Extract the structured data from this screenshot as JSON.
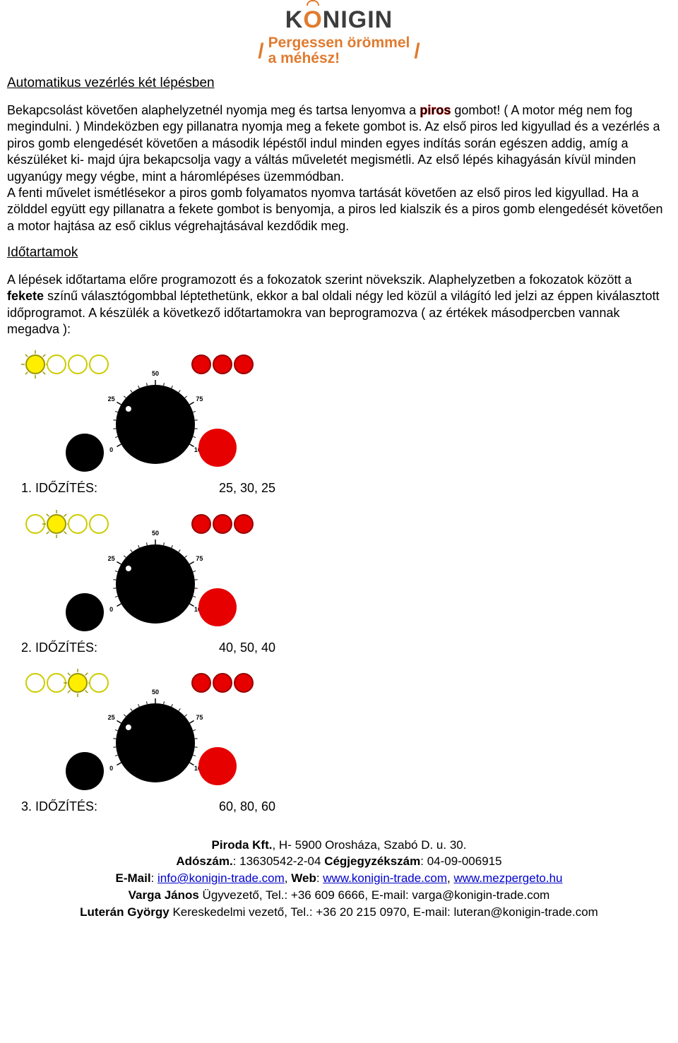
{
  "logo": {
    "brand_pre": "K",
    "brand_o": "O",
    "brand_post": "NIGIN",
    "brand_color_pre": "#3d3d3d",
    "brand_color_o": "#e07b2f",
    "brand_color_post": "#3d3d3d",
    "tagline1": "Pergessen örömmel",
    "tagline2": "a méhész!",
    "tagline_color": "#e07b2f",
    "slash_color": "#e07b2f"
  },
  "section1": {
    "title": "Automatikus vezérlés két lépésben",
    "p1_a": "Bekapcsolást követően alaphelyzetnél nyomja meg és tartsa lenyomva a ",
    "p1_red": "piros",
    "p1_b": " gombot! ( A motor még nem fog megindulni. ) Mindeközben egy pillanatra nyomja meg a fekete gombot is. Az első piros led kigyullad és a vezérlés a piros gomb elengedését követően a második lépéstől indul minden egyes indítás során egészen addig, amíg a készüléket ki- majd újra bekapcsolja vagy a váltás műveletét megismétli. Az első lépés kihagyásán kívül minden ugyanúgy megy végbe, mint a háromlépéses üzemmódban.",
    "p1_c": "A fenti művelet ismétlésekor a piros gomb folyamatos nyomva tartását követően az első piros led kigyullad. Ha a zölddel együtt egy pillanatra a fekete gombot is benyomja, a piros led kialszik és a piros gomb elengedését követően a motor hajtása az eső ciklus végrehajtásával kezdődik meg."
  },
  "section2": {
    "title": "Időtartamok",
    "p1_a": "A lépések időtartama előre programozott és a fokozatok szerint növekszik. Alaphelyzetben a fokozatok között a ",
    "p1_bold": "fekete",
    "p1_b": " színű választógombbal léptethetünk, ekkor a bal oldali négy led közül a világító led jelzi az éppen kiválasztott időprogramot. A készülék a következő időtartamokra van beprogramozva ( az értékek másodpercben vannak megadva ):"
  },
  "diagram_common": {
    "led_yellow_off_fill": "#ffffff",
    "led_yellow_off_stroke": "#cccc00",
    "led_yellow_on_fill": "#ffee00",
    "led_yellow_on_stroke": "#999900",
    "led_red_fill": "#e60000",
    "led_red_stroke": "#990000",
    "black_fill": "#000000",
    "dial_ticks": [
      "0",
      "25",
      "50",
      "75",
      "100"
    ],
    "tick_font": 9,
    "dial_r": 56,
    "button_r": 27,
    "red_button_r": 27,
    "led_r": 13
  },
  "timings": [
    {
      "label": "1. IDŐZÍTÉS:",
      "values": "25, 30, 25",
      "active_led": 0
    },
    {
      "label": "2. IDŐZÍTÉS:",
      "values": "40, 50, 40",
      "active_led": 1
    },
    {
      "label": "3. IDŐZÍTÉS:",
      "values": "60, 80, 60",
      "active_led": 2
    }
  ],
  "footer": {
    "line1_a": "Piroda Kft.",
    "line1_b": ", H- 5900 Orosháza, Szabó D. u. 30.",
    "line2_a": "Adószám.",
    "line2_b": ": 13630542-2-04      ",
    "line2_c": "Cégjegyzékszám",
    "line2_d": ": 04-09-006915",
    "line3_a": "E-Mail",
    "line3_b": ": ",
    "email": "info@konigin-trade.com",
    "line3_c": ", ",
    "line3_d": "Web",
    "line3_e": ": ",
    "web1": "www.konigin-trade.com",
    "line3_f": ", ",
    "web2": "www.mezpergeto.hu",
    "line4_a": "Varga János ",
    "line4_b": "Ügyvezető, Tel.: +36 609 6666, E-mail: varga@konigin-trade.com",
    "line5_a": "Luterán György ",
    "line5_b": "Kereskedelmi vezető, Tel.: +36 20 215 0970, E-mail: luteran@konigin-trade.com"
  }
}
